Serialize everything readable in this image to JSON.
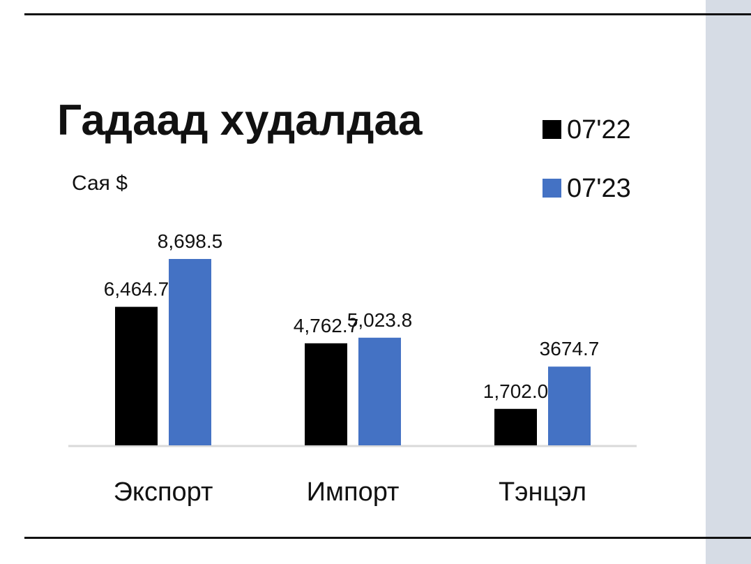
{
  "chart_data": {
    "type": "bar",
    "title": "Гадаад худалдаа",
    "unit_label": "Сая $",
    "categories": [
      "Экспорт",
      "Импорт",
      "Тэнцэл"
    ],
    "series": [
      {
        "name": "07'22",
        "color": "#000000",
        "values": [
          6464.7,
          4762.7,
          1702.0
        ],
        "labels": [
          "6,464.7",
          "4,762.7",
          "1,702.0"
        ]
      },
      {
        "name": "07'23",
        "color": "#4472c4",
        "values": [
          8698.5,
          5023.8,
          3674.7
        ],
        "labels": [
          "8,698.5",
          "5,023.8",
          "3674.7"
        ]
      }
    ],
    "ylim": [
      0,
      8698.5
    ],
    "grid": false,
    "legend_position": "top-right"
  }
}
